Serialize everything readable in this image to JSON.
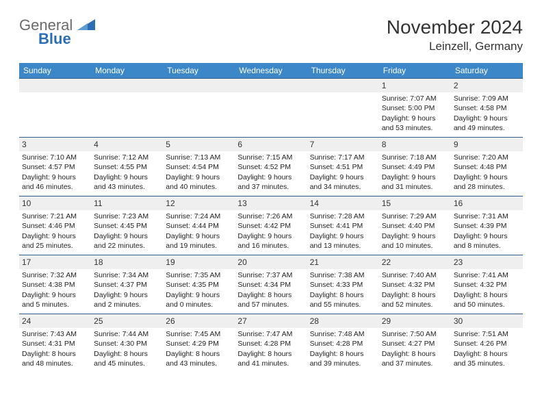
{
  "brand": {
    "word1": "General",
    "word2": "Blue"
  },
  "title": "November 2024",
  "location": "Leinzell, Germany",
  "colors": {
    "header_bg": "#3b87c8",
    "header_text": "#ffffff",
    "daynum_bg": "#efefef",
    "border": "#2f5a8a",
    "logo_gray": "#6a6a6a",
    "logo_blue": "#2d6db3"
  },
  "dayNames": [
    "Sunday",
    "Monday",
    "Tuesday",
    "Wednesday",
    "Thursday",
    "Friday",
    "Saturday"
  ],
  "weeks": [
    [
      null,
      null,
      null,
      null,
      null,
      {
        "n": 1,
        "sr": "7:07 AM",
        "ss": "5:00 PM",
        "dl": "9 hours and 53 minutes."
      },
      {
        "n": 2,
        "sr": "7:09 AM",
        "ss": "4:58 PM",
        "dl": "9 hours and 49 minutes."
      }
    ],
    [
      {
        "n": 3,
        "sr": "7:10 AM",
        "ss": "4:57 PM",
        "dl": "9 hours and 46 minutes."
      },
      {
        "n": 4,
        "sr": "7:12 AM",
        "ss": "4:55 PM",
        "dl": "9 hours and 43 minutes."
      },
      {
        "n": 5,
        "sr": "7:13 AM",
        "ss": "4:54 PM",
        "dl": "9 hours and 40 minutes."
      },
      {
        "n": 6,
        "sr": "7:15 AM",
        "ss": "4:52 PM",
        "dl": "9 hours and 37 minutes."
      },
      {
        "n": 7,
        "sr": "7:17 AM",
        "ss": "4:51 PM",
        "dl": "9 hours and 34 minutes."
      },
      {
        "n": 8,
        "sr": "7:18 AM",
        "ss": "4:49 PM",
        "dl": "9 hours and 31 minutes."
      },
      {
        "n": 9,
        "sr": "7:20 AM",
        "ss": "4:48 PM",
        "dl": "9 hours and 28 minutes."
      }
    ],
    [
      {
        "n": 10,
        "sr": "7:21 AM",
        "ss": "4:46 PM",
        "dl": "9 hours and 25 minutes."
      },
      {
        "n": 11,
        "sr": "7:23 AM",
        "ss": "4:45 PM",
        "dl": "9 hours and 22 minutes."
      },
      {
        "n": 12,
        "sr": "7:24 AM",
        "ss": "4:44 PM",
        "dl": "9 hours and 19 minutes."
      },
      {
        "n": 13,
        "sr": "7:26 AM",
        "ss": "4:42 PM",
        "dl": "9 hours and 16 minutes."
      },
      {
        "n": 14,
        "sr": "7:28 AM",
        "ss": "4:41 PM",
        "dl": "9 hours and 13 minutes."
      },
      {
        "n": 15,
        "sr": "7:29 AM",
        "ss": "4:40 PM",
        "dl": "9 hours and 10 minutes."
      },
      {
        "n": 16,
        "sr": "7:31 AM",
        "ss": "4:39 PM",
        "dl": "9 hours and 8 minutes."
      }
    ],
    [
      {
        "n": 17,
        "sr": "7:32 AM",
        "ss": "4:38 PM",
        "dl": "9 hours and 5 minutes."
      },
      {
        "n": 18,
        "sr": "7:34 AM",
        "ss": "4:37 PM",
        "dl": "9 hours and 2 minutes."
      },
      {
        "n": 19,
        "sr": "7:35 AM",
        "ss": "4:35 PM",
        "dl": "9 hours and 0 minutes."
      },
      {
        "n": 20,
        "sr": "7:37 AM",
        "ss": "4:34 PM",
        "dl": "8 hours and 57 minutes."
      },
      {
        "n": 21,
        "sr": "7:38 AM",
        "ss": "4:33 PM",
        "dl": "8 hours and 55 minutes."
      },
      {
        "n": 22,
        "sr": "7:40 AM",
        "ss": "4:32 PM",
        "dl": "8 hours and 52 minutes."
      },
      {
        "n": 23,
        "sr": "7:41 AM",
        "ss": "4:32 PM",
        "dl": "8 hours and 50 minutes."
      }
    ],
    [
      {
        "n": 24,
        "sr": "7:43 AM",
        "ss": "4:31 PM",
        "dl": "8 hours and 48 minutes."
      },
      {
        "n": 25,
        "sr": "7:44 AM",
        "ss": "4:30 PM",
        "dl": "8 hours and 45 minutes."
      },
      {
        "n": 26,
        "sr": "7:45 AM",
        "ss": "4:29 PM",
        "dl": "8 hours and 43 minutes."
      },
      {
        "n": 27,
        "sr": "7:47 AM",
        "ss": "4:28 PM",
        "dl": "8 hours and 41 minutes."
      },
      {
        "n": 28,
        "sr": "7:48 AM",
        "ss": "4:28 PM",
        "dl": "8 hours and 39 minutes."
      },
      {
        "n": 29,
        "sr": "7:50 AM",
        "ss": "4:27 PM",
        "dl": "8 hours and 37 minutes."
      },
      {
        "n": 30,
        "sr": "7:51 AM",
        "ss": "4:26 PM",
        "dl": "8 hours and 35 minutes."
      }
    ]
  ],
  "labels": {
    "sunrise": "Sunrise: ",
    "sunset": "Sunset: ",
    "daylight": "Daylight: "
  }
}
